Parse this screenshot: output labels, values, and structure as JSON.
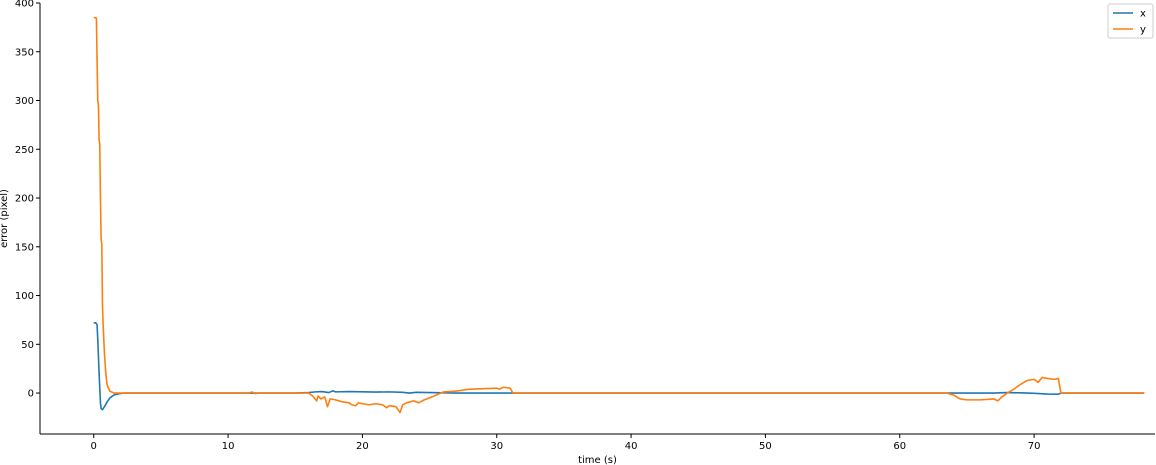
{
  "chart_data": {
    "type": "line",
    "title": "",
    "xlabel": "time (s)",
    "ylabel": "error (pixel)",
    "xlim": [
      -4,
      79
    ],
    "ylim": [
      -42,
      400
    ],
    "xticks": [
      0,
      10,
      20,
      30,
      40,
      50,
      60,
      70,
      80
    ],
    "yticks": [
      0,
      50,
      100,
      150,
      200,
      250,
      300,
      350,
      400
    ],
    "grid": false,
    "legend_position": "top-right",
    "series": [
      {
        "name": "x",
        "color": "#1f77b4",
        "points": [
          [
            0,
            72
          ],
          [
            0.15,
            72
          ],
          [
            0.25,
            70
          ],
          [
            0.3,
            55
          ],
          [
            0.35,
            38
          ],
          [
            0.4,
            20
          ],
          [
            0.45,
            5
          ],
          [
            0.5,
            -10
          ],
          [
            0.55,
            -16
          ],
          [
            0.65,
            -17
          ],
          [
            0.8,
            -14
          ],
          [
            1.0,
            -9
          ],
          [
            1.2,
            -5
          ],
          [
            1.5,
            -2
          ],
          [
            1.8,
            -1
          ],
          [
            2.2,
            0
          ],
          [
            5,
            0
          ],
          [
            10,
            0
          ],
          [
            15,
            0
          ],
          [
            16,
            0.5
          ],
          [
            16.5,
            1.2
          ],
          [
            17,
            1.5
          ],
          [
            17.5,
            0.5
          ],
          [
            17.8,
            2.2
          ],
          [
            18,
            1.2
          ],
          [
            19,
            1.5
          ],
          [
            20,
            1.3
          ],
          [
            21,
            1.0
          ],
          [
            22,
            1.2
          ],
          [
            23,
            0.8
          ],
          [
            23.5,
            0
          ],
          [
            24,
            0.8
          ],
          [
            25,
            0.5
          ],
          [
            26,
            0.2
          ],
          [
            27,
            0
          ],
          [
            31,
            0
          ],
          [
            40,
            0
          ],
          [
            50,
            0
          ],
          [
            60,
            0
          ],
          [
            63.5,
            0
          ],
          [
            64,
            0
          ],
          [
            66,
            0
          ],
          [
            67,
            0
          ],
          [
            68,
            0.5
          ],
          [
            69,
            0.2
          ],
          [
            70,
            -0.3
          ],
          [
            71,
            -1
          ],
          [
            71.8,
            -1.2
          ],
          [
            72,
            0
          ],
          [
            73,
            0
          ],
          [
            78.2,
            0
          ]
        ]
      },
      {
        "name": "y",
        "color": "#ff7f0e",
        "points": [
          [
            0,
            385
          ],
          [
            0.15,
            385
          ],
          [
            0.2,
            384
          ],
          [
            0.25,
            340
          ],
          [
            0.3,
            300
          ],
          [
            0.35,
            295
          ],
          [
            0.4,
            260
          ],
          [
            0.45,
            255
          ],
          [
            0.5,
            200
          ],
          [
            0.55,
            158
          ],
          [
            0.6,
            152
          ],
          [
            0.65,
            90
          ],
          [
            0.7,
            70
          ],
          [
            0.8,
            40
          ],
          [
            0.9,
            20
          ],
          [
            1.0,
            8
          ],
          [
            1.2,
            2
          ],
          [
            1.5,
            0
          ],
          [
            5,
            0
          ],
          [
            10,
            0
          ],
          [
            11.5,
            0
          ],
          [
            11.8,
            1
          ],
          [
            12,
            -0.5
          ],
          [
            12.3,
            0
          ],
          [
            15,
            0
          ],
          [
            16,
            0
          ],
          [
            16.3,
            -3
          ],
          [
            16.6,
            -8
          ],
          [
            16.7,
            -3
          ],
          [
            16.9,
            -6
          ],
          [
            17.2,
            -4
          ],
          [
            17.4,
            -14
          ],
          [
            17.6,
            -6
          ],
          [
            18,
            -7
          ],
          [
            18.5,
            -9
          ],
          [
            19,
            -10
          ],
          [
            19.2,
            -12
          ],
          [
            19.5,
            -13
          ],
          [
            19.7,
            -10
          ],
          [
            20,
            -11
          ],
          [
            20.5,
            -12
          ],
          [
            21,
            -11
          ],
          [
            21.5,
            -12
          ],
          [
            21.8,
            -15
          ],
          [
            22,
            -13
          ],
          [
            22.5,
            -14
          ],
          [
            22.8,
            -20
          ],
          [
            23,
            -12
          ],
          [
            23.3,
            -10
          ],
          [
            23.8,
            -8
          ],
          [
            24.2,
            -10
          ],
          [
            24.6,
            -7
          ],
          [
            25,
            -5
          ],
          [
            25.5,
            -2
          ],
          [
            26,
            1
          ],
          [
            27,
            2
          ],
          [
            28,
            4
          ],
          [
            29,
            4.5
          ],
          [
            30,
            5
          ],
          [
            30.2,
            4
          ],
          [
            30.5,
            6
          ],
          [
            31,
            5
          ],
          [
            31.2,
            0
          ],
          [
            32,
            0
          ],
          [
            40,
            0
          ],
          [
            50,
            0
          ],
          [
            60,
            0
          ],
          [
            63.5,
            0
          ],
          [
            64,
            -2
          ],
          [
            64.5,
            -6
          ],
          [
            65,
            -7
          ],
          [
            66,
            -7
          ],
          [
            67,
            -6
          ],
          [
            67.3,
            -8
          ],
          [
            67.6,
            -4
          ],
          [
            68,
            0
          ],
          [
            68.5,
            4
          ],
          [
            69,
            9
          ],
          [
            69.5,
            13
          ],
          [
            70,
            14
          ],
          [
            70.3,
            11
          ],
          [
            70.6,
            16
          ],
          [
            71,
            15
          ],
          [
            71.5,
            14
          ],
          [
            71.8,
            15
          ],
          [
            72,
            0
          ],
          [
            73,
            0
          ],
          [
            78.2,
            0
          ]
        ]
      }
    ]
  }
}
